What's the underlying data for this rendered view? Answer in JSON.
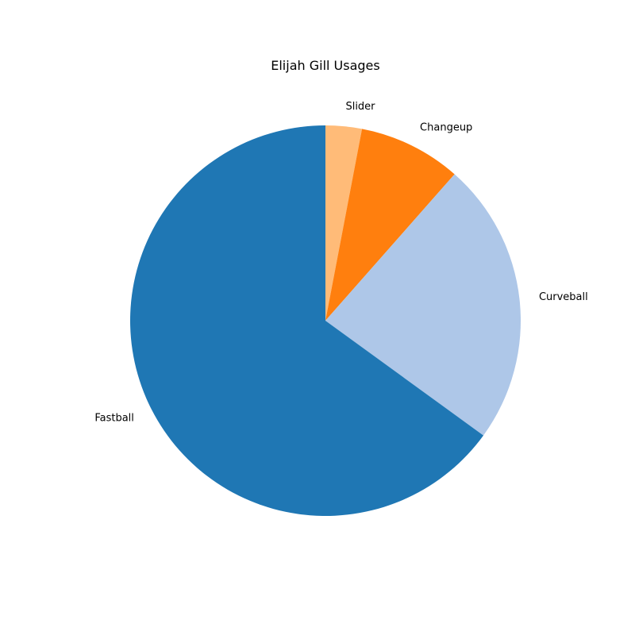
{
  "chart_data": {
    "type": "pie",
    "title": "Elijah Gill Usages",
    "start_angle_deg": 90,
    "direction": "clockwise",
    "slices": [
      {
        "label": "Slider",
        "value": 3.0,
        "color": "#ffbb78"
      },
      {
        "label": "Changeup",
        "value": 8.5,
        "color": "#ff7f0e"
      },
      {
        "label": "Curveball",
        "value": 23.5,
        "color": "#aec7e8"
      },
      {
        "label": "Fastball",
        "value": 65.0,
        "color": "#1f77b4"
      }
    ]
  }
}
